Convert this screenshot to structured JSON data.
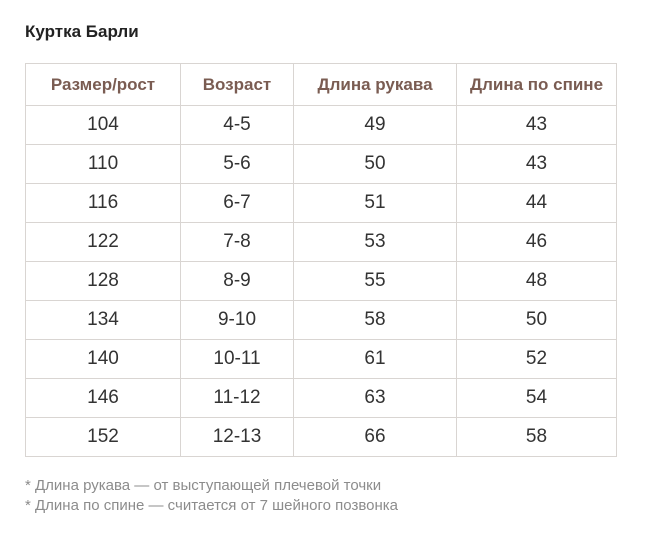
{
  "title": "Куртка Барли",
  "table": {
    "headers": [
      "Размер/рост",
      "Возраст",
      "Длина рукава",
      "Длина по спине"
    ],
    "rows": [
      [
        "104",
        "4-5",
        "49",
        "43"
      ],
      [
        "110",
        "5-6",
        "50",
        "43"
      ],
      [
        "116",
        "6-7",
        "51",
        "44"
      ],
      [
        "122",
        "7-8",
        "53",
        "46"
      ],
      [
        "128",
        "8-9",
        "55",
        "48"
      ],
      [
        "134",
        "9-10",
        "58",
        "50"
      ],
      [
        "140",
        "10-11",
        "61",
        "52"
      ],
      [
        "146",
        "11-12",
        "63",
        "54"
      ],
      [
        "152",
        "12-13",
        "66",
        "58"
      ]
    ]
  },
  "footnotes": [
    "* Длина рукава — от выступающей плечевой точки",
    "* Длина по спине — считается от 7 шейного позвонка"
  ],
  "colors": {
    "header_text": "#7a5c52",
    "border": "#d9d5d2",
    "footnote_text": "#8c8c8c"
  }
}
